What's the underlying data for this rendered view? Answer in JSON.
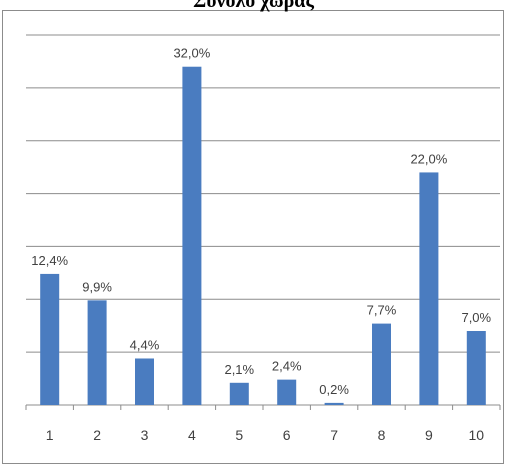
{
  "chart_data": {
    "type": "bar",
    "title": "Σύνολο χώρας",
    "xlabel": "",
    "ylabel": "",
    "categories": [
      "1",
      "2",
      "3",
      "4",
      "5",
      "6",
      "7",
      "8",
      "9",
      "10"
    ],
    "values": [
      12.4,
      9.9,
      4.4,
      32.0,
      2.1,
      2.4,
      0.2,
      7.7,
      22.0,
      7.0
    ],
    "data_labels": [
      "12,4%",
      "9,9%",
      "4,4%",
      "32,0%",
      "2,1%",
      "2,4%",
      "0,2%",
      "7,7%",
      "22,0%",
      "7,0%"
    ],
    "ylim": [
      0,
      35
    ],
    "grid": true,
    "y_axis_labels_shown": false,
    "legend": "none",
    "bar_color": "#4a7cc0",
    "grid_color": "#8c8c8c"
  }
}
